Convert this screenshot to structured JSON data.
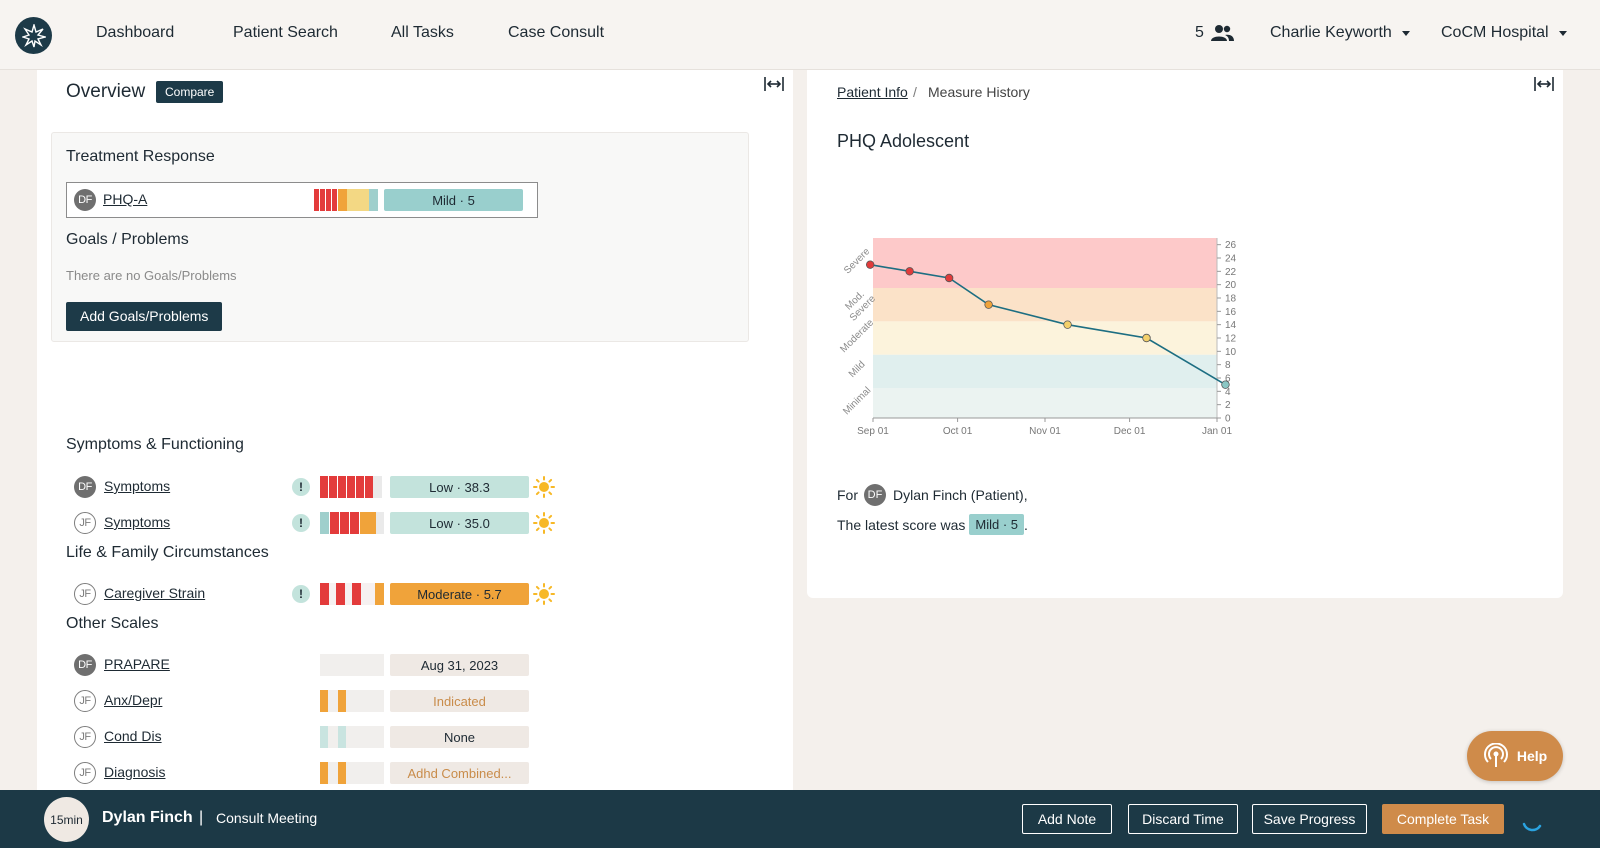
{
  "nav": {
    "links": [
      "Dashboard",
      "Patient Search",
      "All Tasks",
      "Case Consult"
    ],
    "team_count": "5",
    "user_name": "Charlie Keyworth",
    "organization": "CoCM Hospital"
  },
  "overview": {
    "title": "Overview",
    "compare_label": "Compare",
    "treatment_response": {
      "title": "Treatment Response",
      "rows": [
        {
          "initials": "DF",
          "name": "PHQ-A",
          "score": "Mild · 5"
        }
      ]
    },
    "goals": {
      "title": "Goals / Problems",
      "empty_text": "There are no Goals/Problems",
      "add_label": "Add Goals/Problems"
    },
    "symptoms": {
      "title": "Symptoms & Functioning",
      "rows": [
        {
          "initials": "DF",
          "name": "Symptoms",
          "alert": "!",
          "score": "Low · 38.3"
        },
        {
          "initials": "JF",
          "name": "Symptoms",
          "alert": "!",
          "score": "Low · 35.0"
        }
      ]
    },
    "life_family": {
      "title": "Life & Family Circumstances",
      "rows": [
        {
          "initials": "JF",
          "name": "Caregiver Strain",
          "alert": "!",
          "score": "Moderate · 5.7"
        }
      ]
    },
    "other_scales": {
      "title": "Other Scales",
      "rows": [
        {
          "initials": "DF",
          "name": "PRAPARE",
          "score": "Aug 31, 2023"
        },
        {
          "initials": "JF",
          "name": "Anx/Depr",
          "score": "Indicated"
        },
        {
          "initials": "JF",
          "name": "Cond Dis",
          "score": "None"
        },
        {
          "initials": "JF",
          "name": "Diagnosis",
          "score": "Adhd Combined..."
        }
      ]
    }
  },
  "detail": {
    "breadcrumb_link": "Patient Info",
    "breadcrumb_sep": "/",
    "breadcrumb_current": "Measure History",
    "title": "PHQ Adolescent",
    "latest_prefix": "For",
    "patient_initials": "DF",
    "patient_label": "Dylan Finch (Patient),",
    "latest_text": "The latest score was",
    "latest_score": "Mild · 5",
    "latest_suffix": "."
  },
  "chart_data": {
    "type": "line",
    "x_ticks": [
      "Sep 01",
      "Oct 01",
      "Nov 01",
      "Dec 01",
      "Jan 01"
    ],
    "y_ticks": [
      0,
      2,
      4,
      6,
      8,
      10,
      12,
      14,
      16,
      18,
      20,
      22,
      24,
      26
    ],
    "ylim": [
      0,
      27
    ],
    "bands": [
      {
        "label": "Minimal",
        "from": 0,
        "to": 4.5,
        "color": "#ebf3f1"
      },
      {
        "label": "Mild",
        "from": 4.5,
        "to": 9.5,
        "color": "#e0efee"
      },
      {
        "label": "Moderate",
        "from": 9.5,
        "to": 14.5,
        "color": "#fcf3dc"
      },
      {
        "label": "Mod. Severe",
        "from": 14.5,
        "to": 19.5,
        "color": "#fbe2c8"
      },
      {
        "label": "Severe",
        "from": 19.5,
        "to": 27,
        "color": "#fdc9c9"
      }
    ],
    "points": [
      {
        "x": "2023-08-31",
        "y": 23,
        "color": "#e03b3b"
      },
      {
        "x": "2023-09-14",
        "y": 22,
        "color": "#e03b3b"
      },
      {
        "x": "2023-09-28",
        "y": 21,
        "color": "#e03b3b"
      },
      {
        "x": "2023-10-12",
        "y": 17,
        "color": "#f0a33a"
      },
      {
        "x": "2023-11-09",
        "y": 14,
        "color": "#f3d06b"
      },
      {
        "x": "2023-12-07",
        "y": 12,
        "color": "#f3d06b"
      },
      {
        "x": "2024-01-04",
        "y": 5,
        "color": "#8ac7c4"
      }
    ],
    "line_color": "#1d6e82"
  },
  "bottom_bar": {
    "timer": "15min",
    "patient_name": "Dylan Finch",
    "separator": "|",
    "task_label": "Consult Meeting",
    "buttons": [
      "Add Note",
      "Discard Time",
      "Save Progress",
      "Complete Task"
    ]
  },
  "help_label": "Help",
  "colors": {
    "navy": "#1d3a48",
    "accent": "#cf8b4a",
    "red": "#e03b3b",
    "orange": "#f0a33a",
    "teal_pill": "#99cfcd"
  }
}
